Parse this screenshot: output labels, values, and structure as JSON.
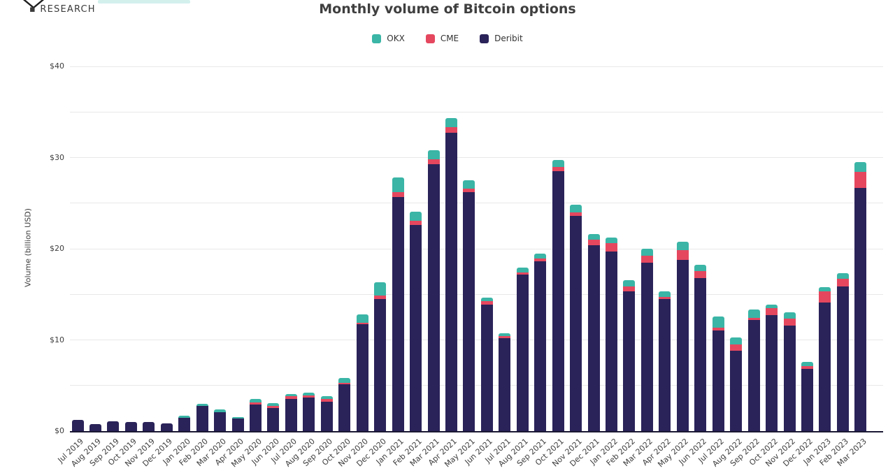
{
  "header": {
    "logo_text": "▪ RESEARCH",
    "title": "Monthly volume of Bitcoin options"
  },
  "legend": [
    {
      "label": "OKX",
      "color": "#3ab5a6"
    },
    {
      "label": "CME",
      "color": "#e5475f"
    },
    {
      "label": "Deribit",
      "color": "#2a2359"
    }
  ],
  "colors": {
    "okx": "#3ab5a6",
    "cme": "#e5475f",
    "deribit": "#2a2359",
    "gridline": "#e8e8e8",
    "axis_line": "#1a1833",
    "text": "#3d3d3d"
  },
  "chart_data": {
    "type": "bar",
    "stacked": true,
    "title": "Monthly volume of Bitcoin options",
    "xlabel": "",
    "ylabel": "Volume (billion USD)",
    "ylim": [
      0,
      40
    ],
    "grid": true,
    "gridline_step": 5,
    "ytick_step": 10,
    "ytick_labels": [
      "$0",
      "$10",
      "$20",
      "$30",
      "$40"
    ],
    "legend_position": "top",
    "legend_order": [
      "OKX",
      "CME",
      "Deribit"
    ],
    "categories": [
      "Jul 2019",
      "Aug 2019",
      "Sep 2019",
      "Oct 2019",
      "Nov 2019",
      "Dec 2019",
      "Jan 2020",
      "Feb 2020",
      "Mar 2020",
      "Apr 2020",
      "May 2020",
      "Jun 2020",
      "Jul 2020",
      "Aug 2020",
      "Sep 2020",
      "Oct 2020",
      "Nov 2020",
      "Dec 2020",
      "Jan 2021",
      "Feb 2021",
      "Mar 2021",
      "Apr 2021",
      "May 2021",
      "Jun 2021",
      "Jul 2021",
      "Aug 2021",
      "Sep 2021",
      "Oct 2021",
      "Nov 2021",
      "Dec 2021",
      "Jan 2022",
      "Feb 2022",
      "Mar 2022",
      "Apr 2022",
      "May 2022",
      "Jun 2022",
      "Jul 2022",
      "Aug 2022",
      "Sep 2022",
      "Oct 2022",
      "Nov 2022",
      "Dec 2022",
      "Jan 2023",
      "Feb 2023",
      "Mar 2023"
    ],
    "series": [
      {
        "name": "Deribit",
        "color": "#2a2359",
        "values": [
          1.2,
          0.8,
          1.1,
          1.0,
          1.0,
          0.85,
          1.45,
          2.75,
          2.1,
          1.4,
          2.9,
          2.5,
          3.55,
          3.65,
          3.2,
          5.1,
          11.7,
          14.5,
          25.7,
          22.6,
          29.3,
          32.7,
          26.2,
          13.9,
          10.2,
          17.2,
          18.6,
          28.5,
          23.6,
          20.4,
          19.7,
          15.3,
          18.5,
          14.5,
          18.8,
          16.8,
          11.0,
          8.8,
          12.2,
          12.7,
          11.6,
          6.8,
          14.1,
          15.85,
          26.7
        ]
      },
      {
        "name": "CME",
        "color": "#e5475f",
        "values": [
          0,
          0,
          0,
          0,
          0,
          0,
          0,
          0,
          0,
          0,
          0.25,
          0.25,
          0.25,
          0.25,
          0.3,
          0.2,
          0.2,
          0.4,
          0.5,
          0.5,
          0.5,
          0.6,
          0.4,
          0.35,
          0.2,
          0.2,
          0.3,
          0.5,
          0.4,
          0.6,
          0.95,
          0.6,
          0.75,
          0.25,
          1.05,
          0.75,
          0.35,
          0.7,
          0.25,
          0.75,
          0.75,
          0.35,
          1.2,
          0.85,
          1.7
        ]
      },
      {
        "name": "OKX",
        "color": "#3ab5a6",
        "values": [
          0,
          0,
          0,
          0,
          0,
          0,
          0.25,
          0.25,
          0.3,
          0.1,
          0.35,
          0.3,
          0.3,
          0.3,
          0.3,
          0.5,
          0.9,
          1.4,
          1.6,
          1.0,
          1.0,
          1.0,
          0.9,
          0.35,
          0.3,
          0.5,
          0.6,
          0.7,
          0.8,
          0.6,
          0.55,
          0.65,
          0.75,
          0.6,
          0.95,
          0.7,
          1.2,
          0.8,
          0.9,
          0.45,
          0.7,
          0.4,
          0.5,
          0.65,
          1.1
        ]
      }
    ]
  }
}
